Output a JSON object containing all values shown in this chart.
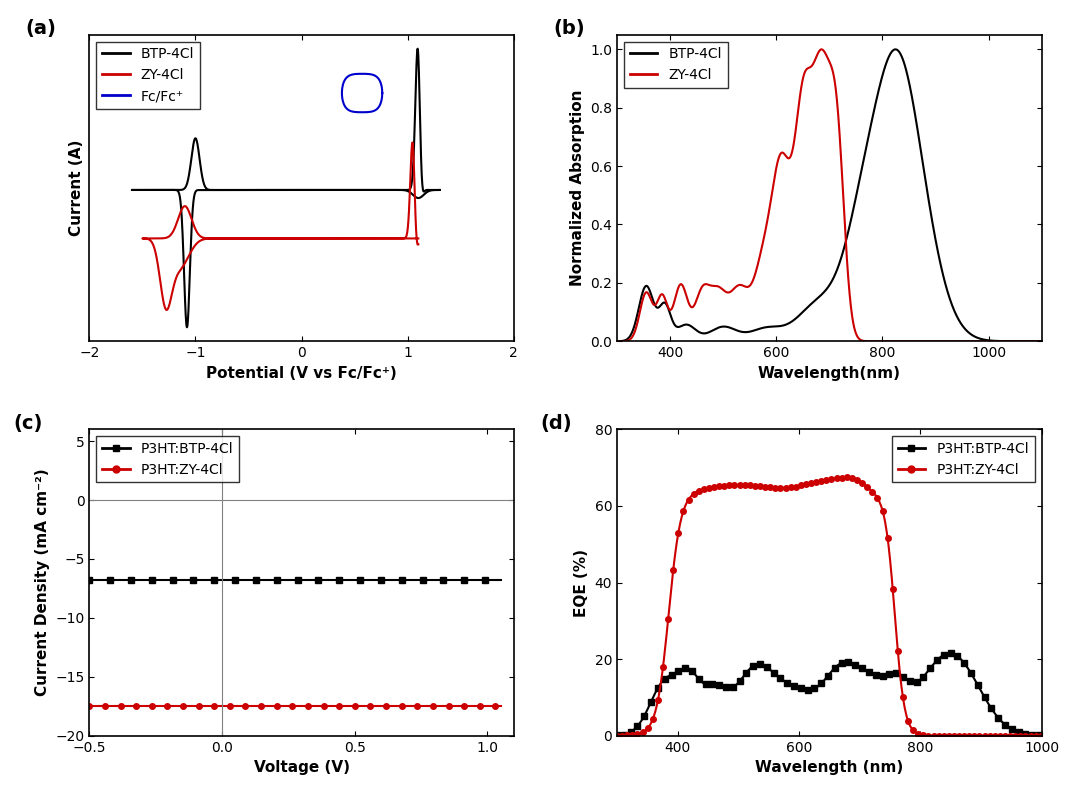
{
  "panel_labels": [
    "(a)",
    "(b)",
    "(c)",
    "(d)"
  ],
  "cv_xlim": [
    -2,
    2
  ],
  "cv_xlabel": "Potential (V vs Fc/Fc⁺)",
  "cv_ylabel": "Current (A)",
  "cv_xticks": [
    -2,
    -1,
    0,
    1,
    2
  ],
  "abs_xlim": [
    300,
    1100
  ],
  "abs_ylim": [
    0.0,
    1.05
  ],
  "abs_xlabel": "Wavelength(nm)",
  "abs_ylabel": "Normalized Absorption",
  "abs_xticks": [
    400,
    600,
    800,
    1000
  ],
  "abs_yticks": [
    0.0,
    0.2,
    0.4,
    0.6,
    0.8,
    1.0
  ],
  "jv_xlim": [
    -0.5,
    1.1
  ],
  "jv_ylim": [
    -20,
    6
  ],
  "jv_xlabel": "Voltage (V)",
  "jv_ylabel": "Current Density (mA cm⁻²)",
  "jv_xticks": [
    -0.5,
    0.0,
    0.5,
    1.0
  ],
  "jv_yticks": [
    -20,
    -15,
    -10,
    -5,
    0,
    5
  ],
  "eqe_xlim": [
    300,
    1000
  ],
  "eqe_ylim": [
    0,
    80
  ],
  "eqe_xlabel": "Wavelength (nm)",
  "eqe_ylabel": "EQE (%)",
  "eqe_xticks": [
    400,
    600,
    800,
    1000
  ],
  "eqe_yticks": [
    0,
    20,
    40,
    60,
    80
  ],
  "color_black": "#000000",
  "color_red": "#cc0000",
  "color_blue": "#0000cc",
  "legend_a": [
    "BTP-4Cl",
    "ZY-4Cl",
    "Fc/Fc⁺"
  ],
  "legend_b": [
    "BTP-4Cl",
    "ZY-4Cl"
  ],
  "legend_c": [
    "P3HT:BTP-4Cl",
    "P3HT:ZY-4Cl"
  ],
  "legend_d": [
    "P3HT:BTP-4Cl",
    "P3HT:ZY-4Cl"
  ]
}
